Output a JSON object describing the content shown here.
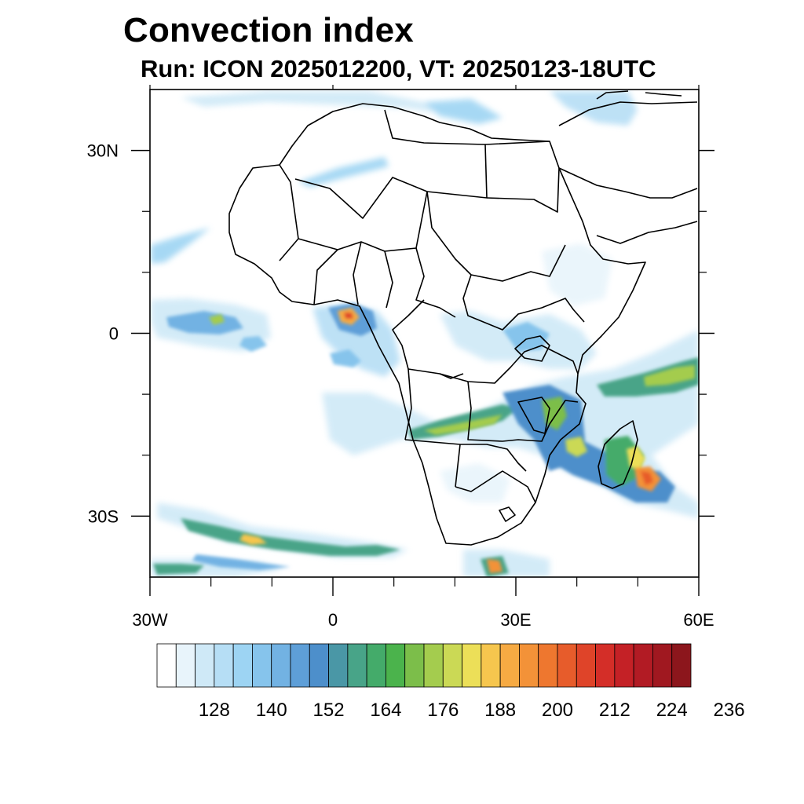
{
  "title": "Convection index",
  "subtitle": "Run: ICON 2025012200,  VT: 20250123-18UTC",
  "map": {
    "region": "Africa",
    "lon_range": [
      -30,
      60
    ],
    "lat_range": [
      -40,
      40
    ],
    "lon_ticks": [
      {
        "value": -30,
        "label": "30W"
      },
      {
        "value": 0,
        "label": "0"
      },
      {
        "value": 30,
        "label": "30E"
      },
      {
        "value": 60,
        "label": "60E"
      }
    ],
    "lat_ticks": [
      {
        "value": 30,
        "label": "30N"
      },
      {
        "value": 0,
        "label": "0"
      },
      {
        "value": -30,
        "label": "30S"
      }
    ],
    "minor_lon_ticks": [
      -20,
      -10,
      10,
      20,
      40,
      50
    ],
    "minor_lat_ticks": [
      20,
      10,
      -10,
      -20
    ]
  },
  "colorbar": {
    "colors": [
      "#ffffff",
      "#e8f4fb",
      "#cfe9f7",
      "#b6def5",
      "#9dd4f3",
      "#86c4ec",
      "#72b2e3",
      "#5e9fd8",
      "#4d8fcb",
      "#4a97a6",
      "#48a488",
      "#44ab6a",
      "#4bb34c",
      "#7cbe4a",
      "#a4cc4e",
      "#cbd955",
      "#ecdf58",
      "#f6c64e",
      "#f6aa43",
      "#f39238",
      "#ee772f",
      "#e75c2b",
      "#df4429",
      "#d42e28",
      "#c42126",
      "#b21b24",
      "#a01820",
      "#8c161c"
    ],
    "labels": [
      "128",
      "140",
      "152",
      "164",
      "176",
      "188",
      "200",
      "212",
      "224",
      "236"
    ]
  }
}
